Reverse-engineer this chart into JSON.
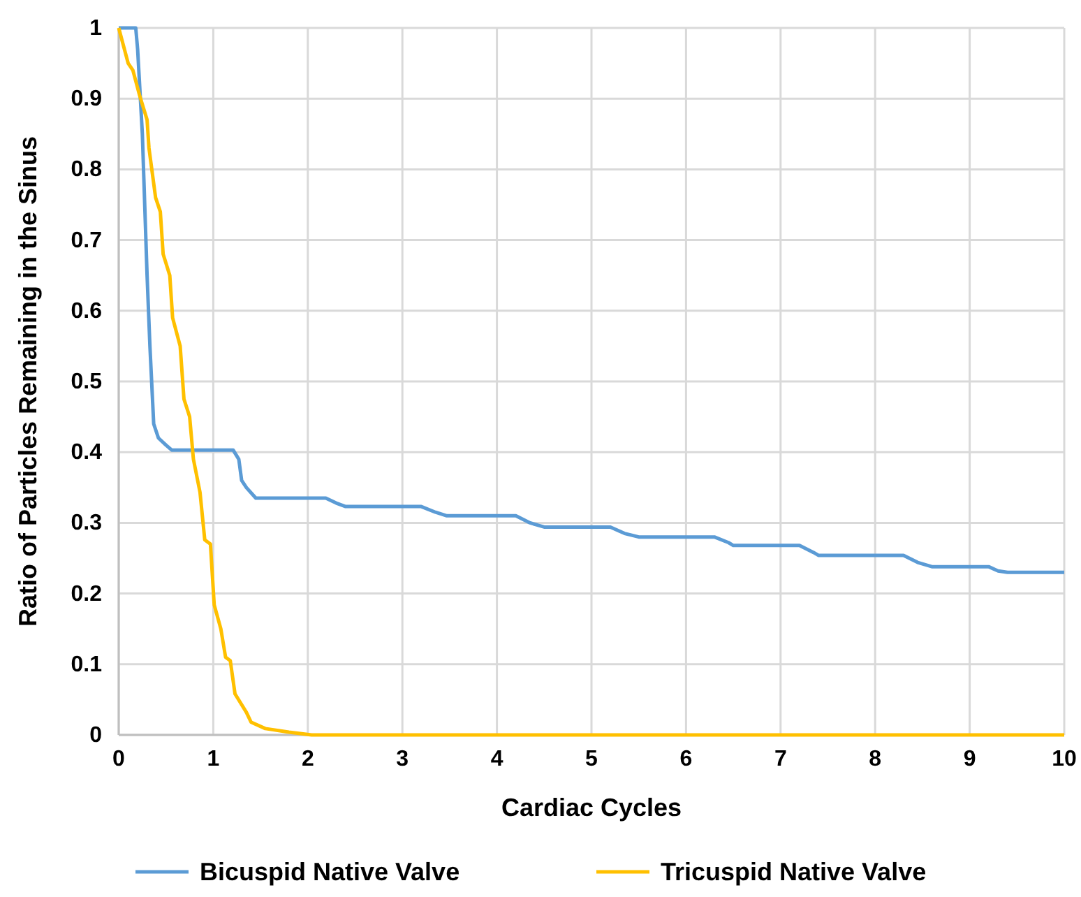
{
  "chart_data": {
    "type": "line",
    "xlabel": "Cardiac Cycles",
    "ylabel": "Ratio of Particles Remaining in the Sinus",
    "xlim": [
      0,
      10
    ],
    "ylim": [
      0,
      1
    ],
    "xticks": [
      0,
      1,
      2,
      3,
      4,
      5,
      6,
      7,
      8,
      9,
      10
    ],
    "yticks": [
      0,
      0.1,
      0.2,
      0.3,
      0.4,
      0.5,
      0.6,
      0.7,
      0.8,
      0.9,
      1
    ],
    "grid": true,
    "legend": "bottom",
    "marker": "none",
    "line_style": "solid",
    "series": [
      {
        "name": "Bicuspid Native Valve",
        "color": "#5b9bd5",
        "x": [
          0,
          0.18,
          0.2,
          0.25,
          0.3,
          0.33,
          0.37,
          0.42,
          0.5,
          0.56,
          1.21,
          1.27,
          1.3,
          1.35,
          1.45,
          2.19,
          2.3,
          2.4,
          3.2,
          3.35,
          3.47,
          4.2,
          4.35,
          4.5,
          5.2,
          5.35,
          5.5,
          6.3,
          6.45,
          6.5,
          7.2,
          7.35,
          7.4,
          8.3,
          8.45,
          8.6,
          9.2,
          9.3,
          9.4,
          10
        ],
        "values": [
          1,
          1,
          0.97,
          0.85,
          0.65,
          0.55,
          0.44,
          0.42,
          0.41,
          0.403,
          0.403,
          0.39,
          0.36,
          0.35,
          0.335,
          0.335,
          0.328,
          0.323,
          0.323,
          0.315,
          0.31,
          0.31,
          0.3,
          0.294,
          0.294,
          0.285,
          0.28,
          0.28,
          0.272,
          0.268,
          0.268,
          0.258,
          0.254,
          0.254,
          0.244,
          0.238,
          0.238,
          0.232,
          0.23,
          0.23
        ]
      },
      {
        "name": "Tricuspid Native Valve",
        "color": "#ffc000",
        "x": [
          0,
          0.1,
          0.15,
          0.22,
          0.3,
          0.32,
          0.39,
          0.44,
          0.47,
          0.54,
          0.57,
          0.65,
          0.69,
          0.75,
          0.79,
          0.86,
          0.91,
          0.97,
          1.01,
          1.08,
          1.13,
          1.18,
          1.23,
          1.35,
          1.4,
          1.55,
          1.8,
          2.04,
          10
        ],
        "values": [
          1,
          0.95,
          0.94,
          0.905,
          0.87,
          0.83,
          0.76,
          0.74,
          0.68,
          0.65,
          0.59,
          0.55,
          0.475,
          0.45,
          0.39,
          0.343,
          0.276,
          0.27,
          0.184,
          0.15,
          0.11,
          0.105,
          0.058,
          0.032,
          0.018,
          0.009,
          0.004,
          0,
          0
        ]
      }
    ]
  }
}
